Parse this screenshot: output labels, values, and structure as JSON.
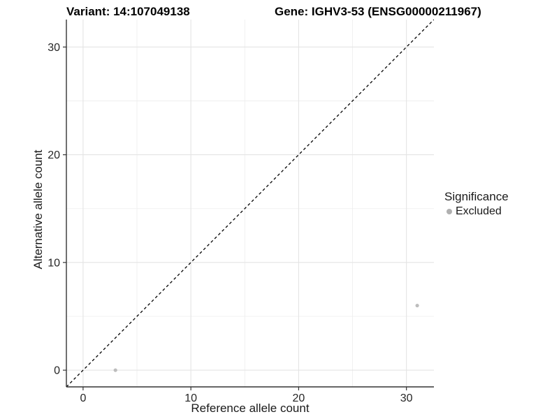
{
  "titles": {
    "variant": "Variant: 14:107049138",
    "gene": "Gene: IGHV3-53 (ENSG00000211967)"
  },
  "chart_data": {
    "type": "scatter",
    "xlabel": "Reference allele count",
    "ylabel": "Alternative allele count",
    "xlim": [
      -1.55,
      32.55
    ],
    "ylim": [
      -1.55,
      32.55
    ],
    "x_ticks": [
      0,
      10,
      20,
      30
    ],
    "y_ticks": [
      0,
      10,
      20,
      30
    ],
    "x_minor_ticks": [
      5,
      15,
      25
    ],
    "y_minor_ticks": [
      5,
      15,
      25
    ],
    "grid": true,
    "points": [
      {
        "x": 3,
        "y": 0,
        "significance": "Excluded"
      },
      {
        "x": 31,
        "y": 6,
        "significance": "Excluded"
      }
    ],
    "identity_line": {
      "from": [
        -1.55,
        -1.55
      ],
      "to": [
        32.55,
        32.55
      ],
      "style": "dashed"
    },
    "legend": {
      "title": "Significance",
      "position": "right",
      "items": [
        {
          "label": "Excluded",
          "color": "#b0b0b0"
        }
      ]
    },
    "colors": {
      "point": "#bdbdbd",
      "grid_major": "#e4e4e4",
      "grid_minor": "#ededed",
      "axis_line": "#333333",
      "identity_line": "#000000",
      "tick_label": "#262626"
    }
  }
}
